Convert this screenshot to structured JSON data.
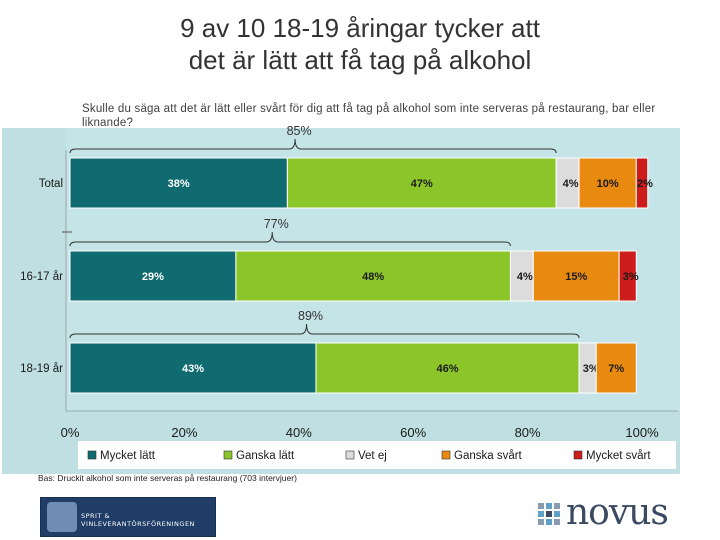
{
  "title_lines": [
    "9 av 10 18-19 åringar tycker att",
    "det är lätt att få tag på alkohol"
  ],
  "question": "Skulle du säga att det är lätt eller svårt för dig att få tag på alkohol som inte serveras på restaurang, bar eller liknande?",
  "footnote": "Bas: Druckit alkohol som inte serveras på restaurang (703 intervjuer)",
  "sponsor_text": "SPRIT & VINLEVERANTÖRSFÖRENINGEN",
  "brand": "novus",
  "chart_data": {
    "type": "bar",
    "orientation": "horizontal",
    "stacked": true,
    "categories": [
      "Total",
      "16-17 år",
      "18-19 år"
    ],
    "series": [
      {
        "name": "Mycket lätt",
        "color": "#0f6b6f",
        "values": [
          38,
          29,
          43
        ],
        "labels": [
          "38%",
          "29%",
          "43%"
        ]
      },
      {
        "name": "Ganska lätt",
        "color": "#8bc52a",
        "values": [
          47,
          48,
          46
        ],
        "labels": [
          "47%",
          "48%",
          "46%"
        ]
      },
      {
        "name": "Vet ej",
        "color": "#dcdcdc",
        "values": [
          4,
          4,
          3
        ],
        "labels": [
          "4%",
          "4%",
          "3%"
        ]
      },
      {
        "name": "Ganska svårt",
        "color": "#e88a10",
        "values": [
          10,
          15,
          7
        ],
        "labels": [
          "10%",
          "15%",
          "7%"
        ]
      },
      {
        "name": "Mycket svårt",
        "color": "#cc1c1c",
        "values": [
          2,
          3,
          0
        ],
        "labels": [
          "2%",
          "3%",
          ""
        ]
      }
    ],
    "bracket_totals": [
      "85%",
      "77%",
      "89%"
    ],
    "xlim": [
      0,
      100
    ],
    "xticks": [
      "0%",
      "20%",
      "40%",
      "60%",
      "80%",
      "100%"
    ],
    "legend": "bottom",
    "plot_background": "#bfdfe2"
  }
}
